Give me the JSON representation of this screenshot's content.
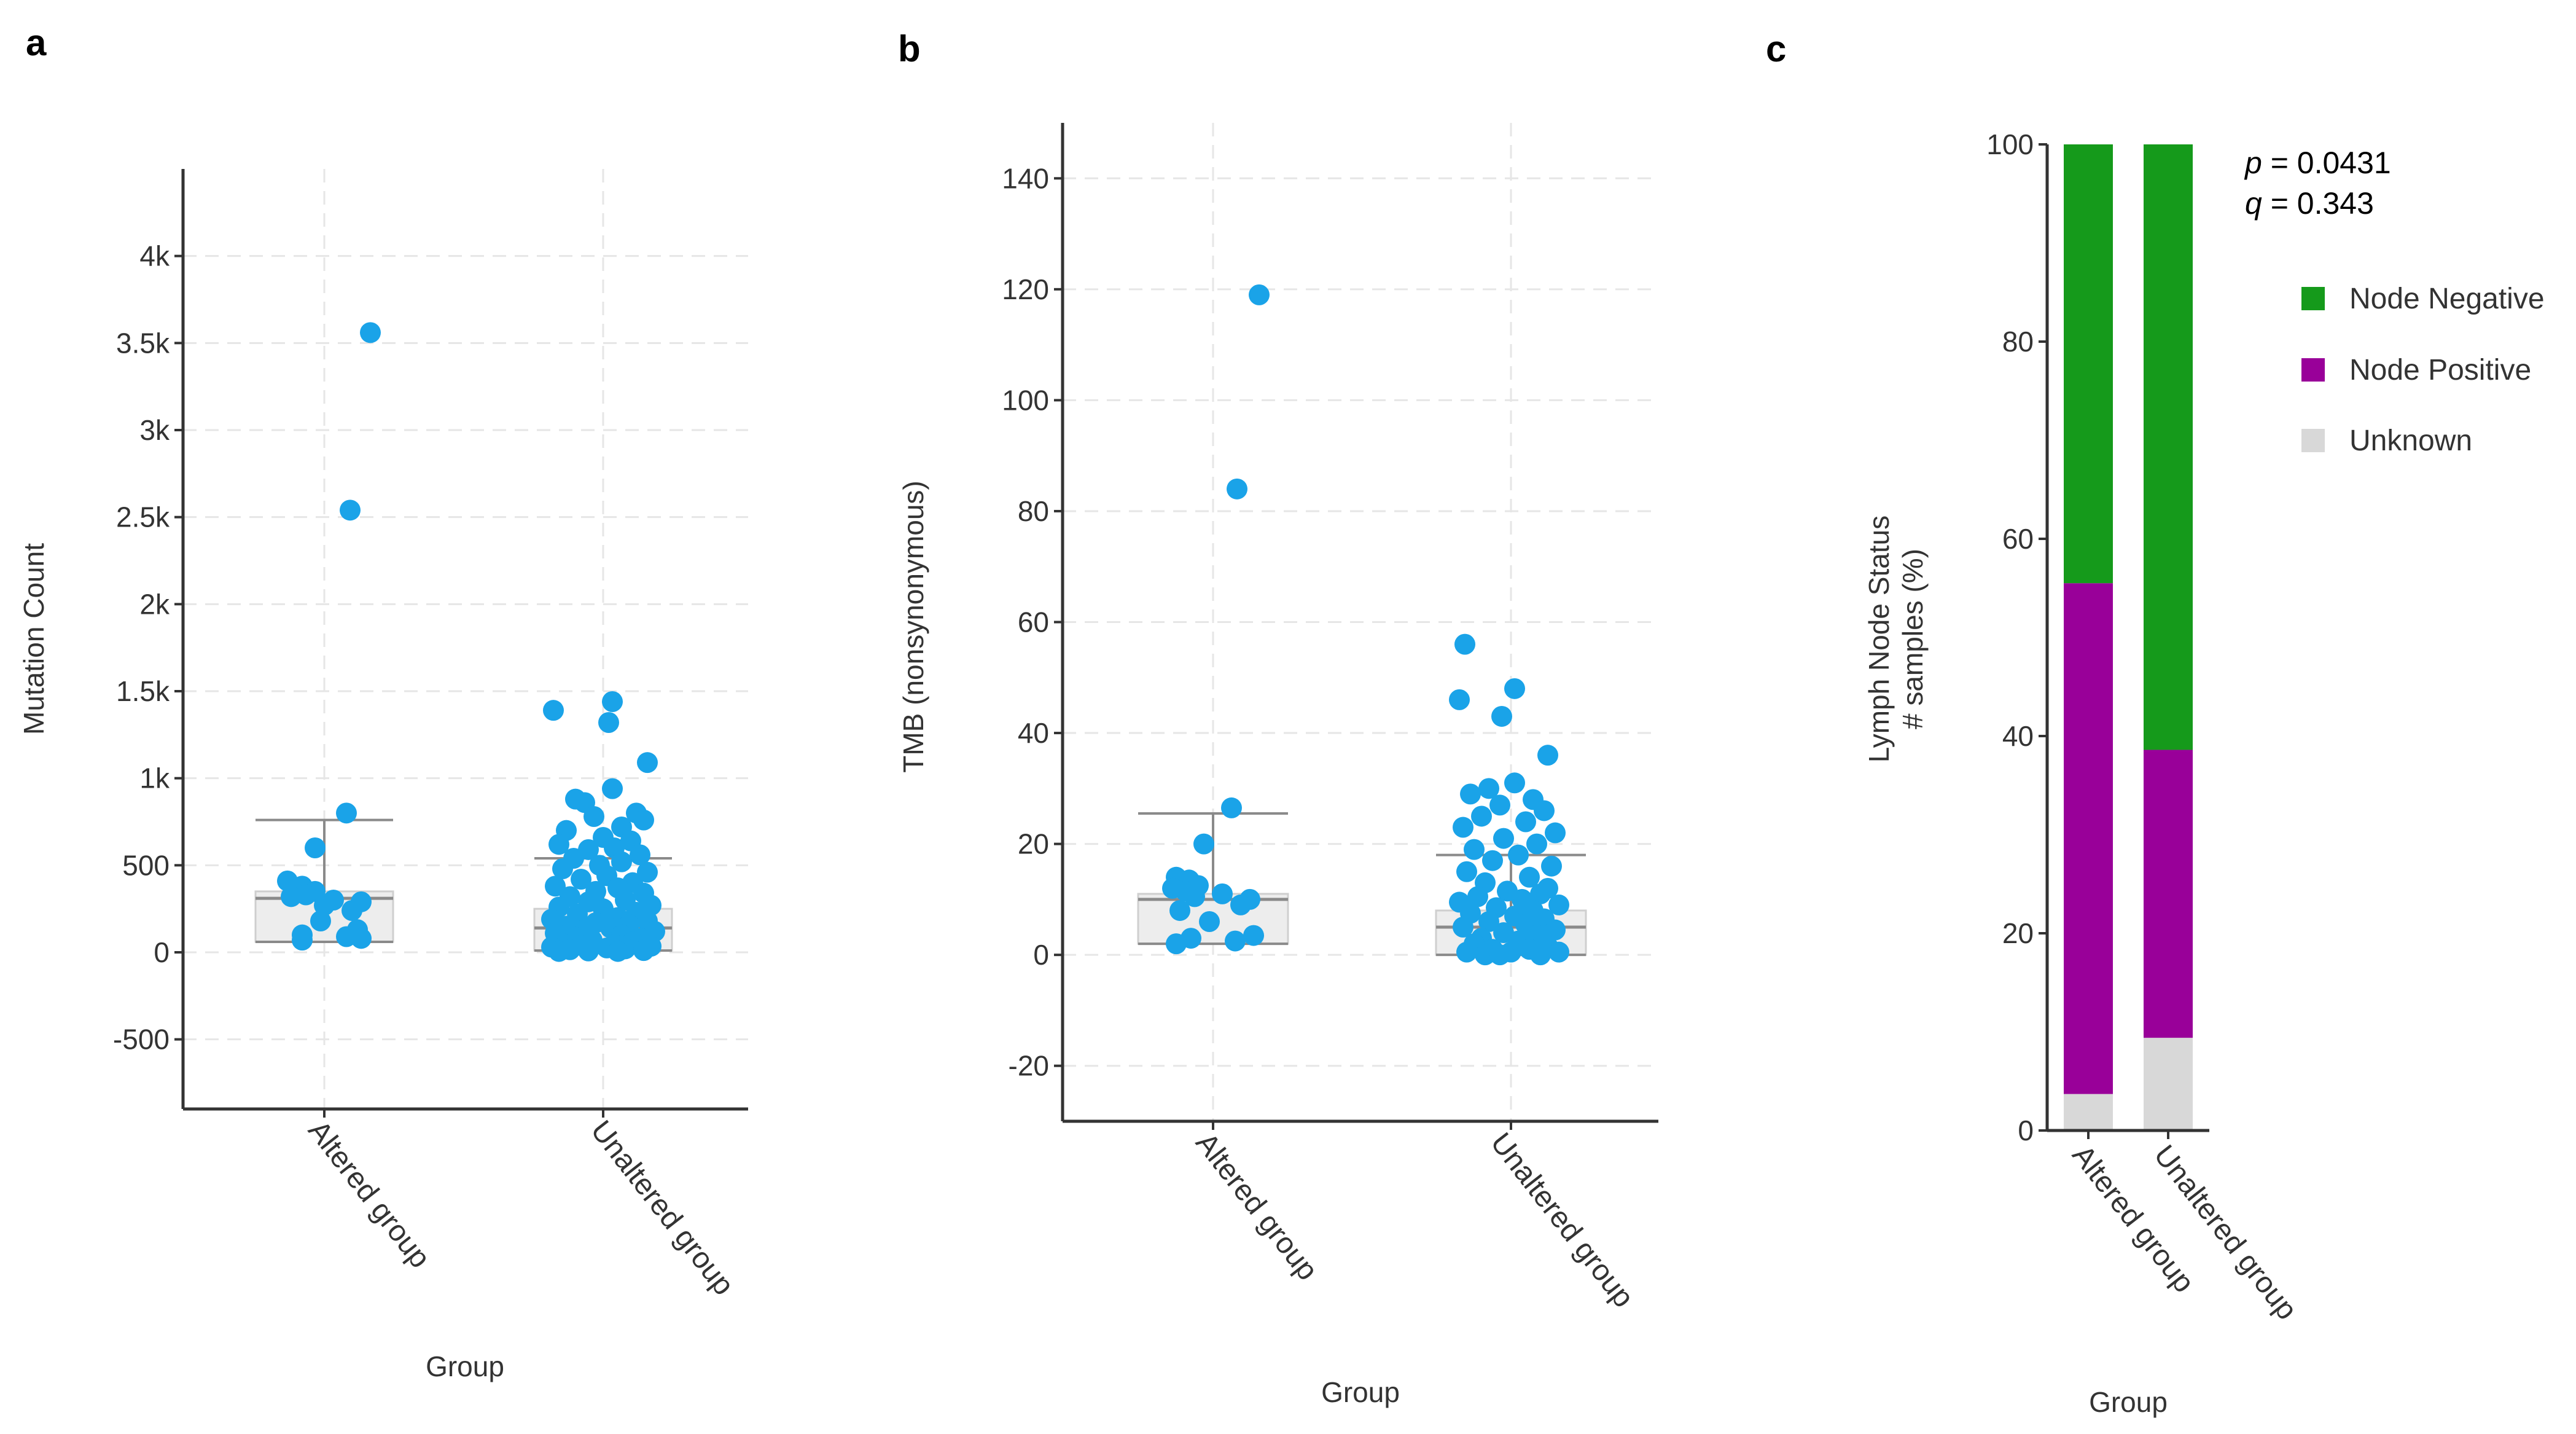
{
  "panels": {
    "a": "a",
    "b": "b",
    "c": "c"
  },
  "colors": {
    "point": "#1aa3e8",
    "node_negative": "#159a1b",
    "node_positive": "#990099",
    "unknown": "#d8d8d8"
  },
  "chart_data": [
    {
      "type": "scatter",
      "panel": "a",
      "xlabel": "Group",
      "ylabel": "Mutation Count",
      "ylim": [
        -900,
        4500
      ],
      "y_ticks": [
        -500,
        0,
        500,
        1000,
        1500,
        2000,
        2500,
        3000,
        3500,
        4000
      ],
      "y_tick_labels": [
        "-500",
        "0",
        "500",
        "1k",
        "1.5k",
        "2k",
        "2.5k",
        "3k",
        "3.5k",
        "4k"
      ],
      "grid": true,
      "categories": [
        "Altered group",
        "Unaltered group"
      ],
      "box": [
        {
          "q1": 60,
          "median": 310,
          "q3": 350,
          "whisker_low": 60,
          "whisker_high": 760
        },
        {
          "q1": 10,
          "median": 140,
          "q3": 250,
          "whisker_low": 10,
          "whisker_high": 540
        }
      ],
      "points": [
        {
          "group": 0,
          "jitter": 0.25,
          "y": 3560
        },
        {
          "group": 0,
          "jitter": 0.14,
          "y": 2540
        },
        {
          "group": 0,
          "jitter": 0.12,
          "y": 800
        },
        {
          "group": 0,
          "jitter": -0.05,
          "y": 600
        },
        {
          "group": 0,
          "jitter": -0.2,
          "y": 410
        },
        {
          "group": 0,
          "jitter": -0.12,
          "y": 380
        },
        {
          "group": 0,
          "jitter": -0.05,
          "y": 350
        },
        {
          "group": 0,
          "jitter": -0.1,
          "y": 330
        },
        {
          "group": 0,
          "jitter": -0.18,
          "y": 320
        },
        {
          "group": 0,
          "jitter": 0.05,
          "y": 300
        },
        {
          "group": 0,
          "jitter": 0.2,
          "y": 290
        },
        {
          "group": 0,
          "jitter": 0.0,
          "y": 270
        },
        {
          "group": 0,
          "jitter": 0.15,
          "y": 240
        },
        {
          "group": 0,
          "jitter": -0.02,
          "y": 180
        },
        {
          "group": 0,
          "jitter": 0.18,
          "y": 130
        },
        {
          "group": 0,
          "jitter": -0.12,
          "y": 100
        },
        {
          "group": 0,
          "jitter": 0.12,
          "y": 90
        },
        {
          "group": 0,
          "jitter": -0.12,
          "y": 70
        },
        {
          "group": 0,
          "jitter": 0.2,
          "y": 80
        },
        {
          "group": 1,
          "jitter": 0.05,
          "y": 1440
        },
        {
          "group": 1,
          "jitter": -0.27,
          "y": 1390
        },
        {
          "group": 1,
          "jitter": 0.03,
          "y": 1320
        },
        {
          "group": 1,
          "jitter": 0.24,
          "y": 1090
        },
        {
          "group": 1,
          "jitter": 0.05,
          "y": 940
        },
        {
          "group": 1,
          "jitter": -0.15,
          "y": 880
        },
        {
          "group": 1,
          "jitter": -0.1,
          "y": 860
        },
        {
          "group": 1,
          "jitter": 0.18,
          "y": 800
        },
        {
          "group": 1,
          "jitter": -0.05,
          "y": 780
        },
        {
          "group": 1,
          "jitter": 0.22,
          "y": 760
        },
        {
          "group": 1,
          "jitter": 0.1,
          "y": 720
        },
        {
          "group": 1,
          "jitter": -0.2,
          "y": 700
        },
        {
          "group": 1,
          "jitter": 0.0,
          "y": 660
        },
        {
          "group": 1,
          "jitter": 0.15,
          "y": 640
        },
        {
          "group": 1,
          "jitter": -0.24,
          "y": 620
        },
        {
          "group": 1,
          "jitter": 0.06,
          "y": 600
        },
        {
          "group": 1,
          "jitter": -0.08,
          "y": 590
        },
        {
          "group": 1,
          "jitter": 0.2,
          "y": 560
        },
        {
          "group": 1,
          "jitter": -0.16,
          "y": 540
        },
        {
          "group": 1,
          "jitter": 0.1,
          "y": 520
        },
        {
          "group": 1,
          "jitter": -0.02,
          "y": 500
        },
        {
          "group": 1,
          "jitter": -0.22,
          "y": 480
        },
        {
          "group": 1,
          "jitter": 0.24,
          "y": 460
        },
        {
          "group": 1,
          "jitter": 0.02,
          "y": 440
        },
        {
          "group": 1,
          "jitter": -0.12,
          "y": 420
        },
        {
          "group": 1,
          "jitter": 0.16,
          "y": 400
        },
        {
          "group": 1,
          "jitter": -0.26,
          "y": 380
        },
        {
          "group": 1,
          "jitter": 0.08,
          "y": 370
        },
        {
          "group": 1,
          "jitter": -0.04,
          "y": 350
        },
        {
          "group": 1,
          "jitter": 0.22,
          "y": 340
        },
        {
          "group": 1,
          "jitter": -0.18,
          "y": 320
        },
        {
          "group": 1,
          "jitter": 0.12,
          "y": 300
        },
        {
          "group": 1,
          "jitter": -0.08,
          "y": 290
        },
        {
          "group": 1,
          "jitter": 0.26,
          "y": 270
        },
        {
          "group": 1,
          "jitter": -0.24,
          "y": 260
        },
        {
          "group": 1,
          "jitter": 0.0,
          "y": 250
        },
        {
          "group": 1,
          "jitter": 0.18,
          "y": 230
        },
        {
          "group": 1,
          "jitter": -0.14,
          "y": 220
        },
        {
          "group": 1,
          "jitter": 0.08,
          "y": 200
        },
        {
          "group": 1,
          "jitter": -0.28,
          "y": 190
        },
        {
          "group": 1,
          "jitter": 0.24,
          "y": 180
        },
        {
          "group": 1,
          "jitter": -0.04,
          "y": 170
        },
        {
          "group": 1,
          "jitter": 0.14,
          "y": 160
        },
        {
          "group": 1,
          "jitter": -0.2,
          "y": 150
        },
        {
          "group": 1,
          "jitter": 0.04,
          "y": 140
        },
        {
          "group": 1,
          "jitter": -0.1,
          "y": 130
        },
        {
          "group": 1,
          "jitter": 0.28,
          "y": 120
        },
        {
          "group": 1,
          "jitter": -0.26,
          "y": 110
        },
        {
          "group": 1,
          "jitter": 0.1,
          "y": 100
        },
        {
          "group": 1,
          "jitter": -0.16,
          "y": 90
        },
        {
          "group": 1,
          "jitter": 0.2,
          "y": 80
        },
        {
          "group": 1,
          "jitter": -0.06,
          "y": 70
        },
        {
          "group": 1,
          "jitter": 0.16,
          "y": 60
        },
        {
          "group": 1,
          "jitter": -0.22,
          "y": 50
        },
        {
          "group": 1,
          "jitter": 0.06,
          "y": 45
        },
        {
          "group": 1,
          "jitter": -0.12,
          "y": 40
        },
        {
          "group": 1,
          "jitter": 0.26,
          "y": 35
        },
        {
          "group": 1,
          "jitter": -0.28,
          "y": 30
        },
        {
          "group": 1,
          "jitter": 0.02,
          "y": 25
        },
        {
          "group": 1,
          "jitter": 0.12,
          "y": 20
        },
        {
          "group": 1,
          "jitter": -0.18,
          "y": 15
        },
        {
          "group": 1,
          "jitter": 0.22,
          "y": 10
        },
        {
          "group": 1,
          "jitter": -0.08,
          "y": 8
        },
        {
          "group": 1,
          "jitter": 0.08,
          "y": 5
        },
        {
          "group": 1,
          "jitter": -0.24,
          "y": 5
        }
      ]
    },
    {
      "type": "scatter",
      "panel": "b",
      "xlabel": "Group",
      "ylabel": "TMB (nonsynonymous)",
      "ylim": [
        -30,
        150
      ],
      "y_ticks": [
        -20,
        0,
        20,
        40,
        60,
        80,
        100,
        120,
        140
      ],
      "y_tick_labels": [
        "-20",
        "0",
        "20",
        "40",
        "60",
        "80",
        "100",
        "120",
        "140"
      ],
      "grid": true,
      "categories": [
        "Altered group",
        "Unaltered group"
      ],
      "box": [
        {
          "q1": 2,
          "median": 10,
          "q3": 11,
          "whisker_low": 2,
          "whisker_high": 25.5
        },
        {
          "q1": 0,
          "median": 5,
          "q3": 8,
          "whisker_low": 0,
          "whisker_high": 18
        }
      ],
      "points": [
        {
          "group": 0,
          "jitter": 0.25,
          "y": 119
        },
        {
          "group": 0,
          "jitter": 0.13,
          "y": 84
        },
        {
          "group": 0,
          "jitter": 0.1,
          "y": 26.5
        },
        {
          "group": 0,
          "jitter": -0.05,
          "y": 20
        },
        {
          "group": 0,
          "jitter": -0.2,
          "y": 14
        },
        {
          "group": 0,
          "jitter": -0.13,
          "y": 13.5
        },
        {
          "group": 0,
          "jitter": -0.08,
          "y": 12.5
        },
        {
          "group": 0,
          "jitter": -0.22,
          "y": 12
        },
        {
          "group": 0,
          "jitter": -0.15,
          "y": 11.5
        },
        {
          "group": 0,
          "jitter": 0.05,
          "y": 11
        },
        {
          "group": 0,
          "jitter": -0.1,
          "y": 10.5
        },
        {
          "group": 0,
          "jitter": 0.2,
          "y": 10
        },
        {
          "group": 0,
          "jitter": 0.15,
          "y": 9
        },
        {
          "group": 0,
          "jitter": -0.18,
          "y": 8
        },
        {
          "group": 0,
          "jitter": -0.02,
          "y": 6
        },
        {
          "group": 0,
          "jitter": 0.22,
          "y": 3.5
        },
        {
          "group": 0,
          "jitter": -0.12,
          "y": 3
        },
        {
          "group": 0,
          "jitter": 0.12,
          "y": 2.5
        },
        {
          "group": 0,
          "jitter": -0.2,
          "y": 2
        },
        {
          "group": 1,
          "jitter": -0.25,
          "y": 56
        },
        {
          "group": 1,
          "jitter": 0.02,
          "y": 48
        },
        {
          "group": 1,
          "jitter": -0.28,
          "y": 46
        },
        {
          "group": 1,
          "jitter": -0.05,
          "y": 43
        },
        {
          "group": 1,
          "jitter": 0.2,
          "y": 36
        },
        {
          "group": 1,
          "jitter": 0.02,
          "y": 31
        },
        {
          "group": 1,
          "jitter": -0.12,
          "y": 30
        },
        {
          "group": 1,
          "jitter": -0.22,
          "y": 29
        },
        {
          "group": 1,
          "jitter": 0.12,
          "y": 28
        },
        {
          "group": 1,
          "jitter": -0.06,
          "y": 27
        },
        {
          "group": 1,
          "jitter": 0.18,
          "y": 26
        },
        {
          "group": 1,
          "jitter": -0.16,
          "y": 25
        },
        {
          "group": 1,
          "jitter": 0.08,
          "y": 24
        },
        {
          "group": 1,
          "jitter": -0.26,
          "y": 23
        },
        {
          "group": 1,
          "jitter": 0.24,
          "y": 22
        },
        {
          "group": 1,
          "jitter": -0.04,
          "y": 21
        },
        {
          "group": 1,
          "jitter": 0.14,
          "y": 20
        },
        {
          "group": 1,
          "jitter": -0.2,
          "y": 19
        },
        {
          "group": 1,
          "jitter": 0.04,
          "y": 18
        },
        {
          "group": 1,
          "jitter": -0.1,
          "y": 17
        },
        {
          "group": 1,
          "jitter": 0.22,
          "y": 16
        },
        {
          "group": 1,
          "jitter": -0.24,
          "y": 15
        },
        {
          "group": 1,
          "jitter": 0.1,
          "y": 14
        },
        {
          "group": 1,
          "jitter": -0.14,
          "y": 13
        },
        {
          "group": 1,
          "jitter": 0.2,
          "y": 12
        },
        {
          "group": 1,
          "jitter": -0.02,
          "y": 11.5
        },
        {
          "group": 1,
          "jitter": 0.16,
          "y": 11
        },
        {
          "group": 1,
          "jitter": -0.18,
          "y": 10.5
        },
        {
          "group": 1,
          "jitter": 0.06,
          "y": 10
        },
        {
          "group": 1,
          "jitter": -0.28,
          "y": 9.5
        },
        {
          "group": 1,
          "jitter": 0.26,
          "y": 9
        },
        {
          "group": 1,
          "jitter": -0.08,
          "y": 8.5
        },
        {
          "group": 1,
          "jitter": 0.12,
          "y": 8
        },
        {
          "group": 1,
          "jitter": -0.22,
          "y": 7.5
        },
        {
          "group": 1,
          "jitter": 0.02,
          "y": 7
        },
        {
          "group": 1,
          "jitter": 0.18,
          "y": 6.5
        },
        {
          "group": 1,
          "jitter": -0.12,
          "y": 6
        },
        {
          "group": 1,
          "jitter": 0.08,
          "y": 5.5
        },
        {
          "group": 1,
          "jitter": -0.26,
          "y": 5
        },
        {
          "group": 1,
          "jitter": 0.24,
          "y": 4.5
        },
        {
          "group": 1,
          "jitter": -0.04,
          "y": 4
        },
        {
          "group": 1,
          "jitter": 0.14,
          "y": 3.5
        },
        {
          "group": 1,
          "jitter": -0.16,
          "y": 3
        },
        {
          "group": 1,
          "jitter": 0.04,
          "y": 2.5
        },
        {
          "group": 1,
          "jitter": -0.2,
          "y": 2
        },
        {
          "group": 1,
          "jitter": 0.2,
          "y": 1.5
        },
        {
          "group": 1,
          "jitter": -0.1,
          "y": 1
        },
        {
          "group": 1,
          "jitter": 0.1,
          "y": 1
        },
        {
          "group": 1,
          "jitter": -0.24,
          "y": 0.5
        },
        {
          "group": 1,
          "jitter": 0.26,
          "y": 0.5
        },
        {
          "group": 1,
          "jitter": 0.0,
          "y": 0.5
        },
        {
          "group": 1,
          "jitter": -0.14,
          "y": 0
        },
        {
          "group": 1,
          "jitter": 0.16,
          "y": 0
        },
        {
          "group": 1,
          "jitter": -0.06,
          "y": 0
        }
      ]
    },
    {
      "type": "bar",
      "panel": "c",
      "stacked": true,
      "xlabel": "Group",
      "ylabel_lines": [
        "Lymph Node Status",
        "# samples (%)"
      ],
      "ylim": [
        0,
        100
      ],
      "y_ticks": [
        0,
        20,
        40,
        60,
        80,
        100
      ],
      "y_tick_labels": [
        "0",
        "20",
        "40",
        "60",
        "80",
        "100"
      ],
      "grid": false,
      "categories": [
        "Altered group",
        "Unaltered group"
      ],
      "series": [
        {
          "name": "Unknown",
          "values": [
            3.7,
            9.4
          ]
        },
        {
          "name": "Node Positive",
          "values": [
            51.8,
            29.2
          ]
        },
        {
          "name": "Node Negative",
          "values": [
            44.5,
            61.4
          ]
        }
      ],
      "legend": {
        "position": "top-right",
        "entries": [
          "Node Negative",
          "Node Positive",
          "Unknown"
        ]
      },
      "annotation": {
        "p_label": "p",
        "p_value": " = 0.0431",
        "q_label": "q",
        "q_value": " = 0.343"
      }
    }
  ]
}
